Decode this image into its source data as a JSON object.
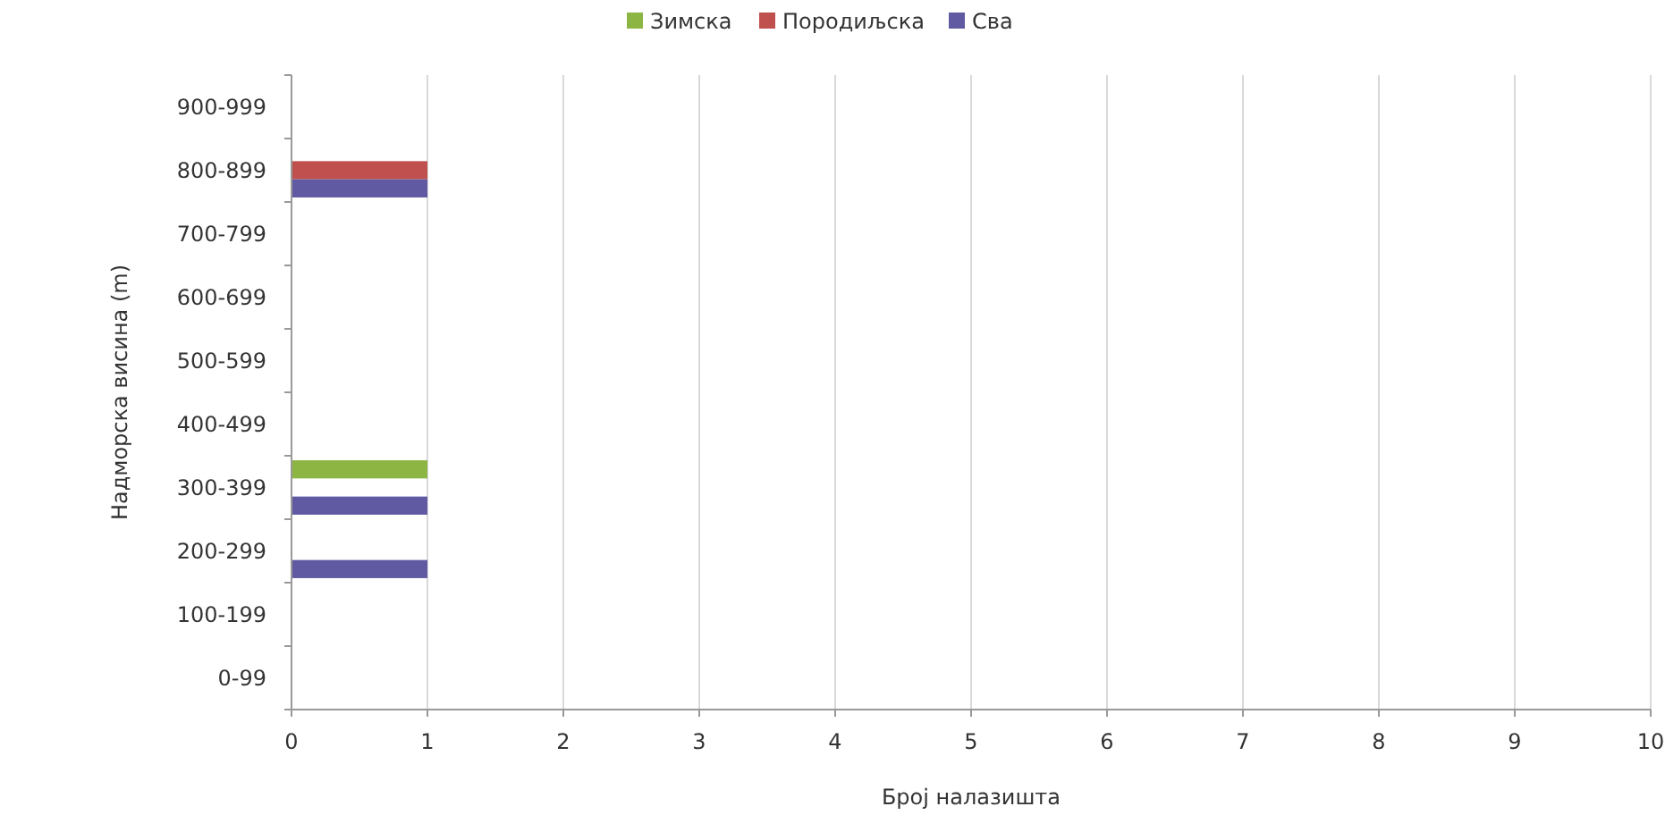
{
  "chart_data": {
    "type": "bar",
    "orientation": "horizontal",
    "xlabel": "Број налазишта",
    "ylabel": "Надморска висина (m)",
    "categories": [
      "900-999",
      "800-899",
      "700-799",
      "600-699",
      "500-599",
      "400-499",
      "300-399",
      "200-299",
      "100-199",
      "0-99"
    ],
    "series": [
      {
        "name": "Зимска",
        "color": "#8db543",
        "values": [
          0,
          0,
          0,
          0,
          0,
          0,
          1,
          0,
          0,
          0
        ]
      },
      {
        "name": "Породиљска",
        "color": "#c0504d",
        "values": [
          0,
          1,
          0,
          0,
          0,
          0,
          0,
          0,
          0,
          0
        ]
      },
      {
        "name": "Сва",
        "color": "#5f5aa2",
        "values": [
          0,
          1,
          0,
          0,
          0,
          0,
          1,
          1,
          0,
          0
        ]
      }
    ],
    "xlim": [
      0,
      10
    ],
    "xticks": [
      0,
      1,
      2,
      3,
      4,
      5,
      6,
      7,
      8,
      9,
      10
    ],
    "grid": "x",
    "legend": "top"
  }
}
